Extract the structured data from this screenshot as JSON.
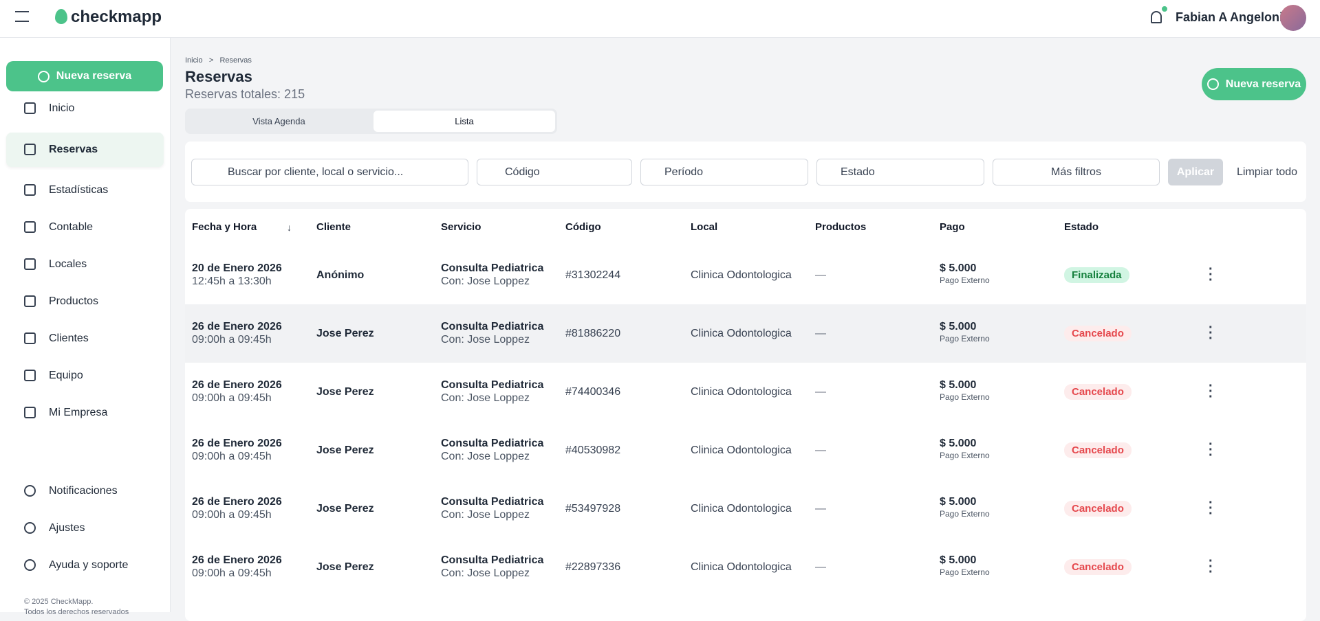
{
  "app": {
    "brand": "checkmapp",
    "user": "Fabian A Angeloni"
  },
  "sidebar": {
    "new_button": "Nueva reserva",
    "nav": [
      "Inicio",
      "Reservas",
      "Estadísticas",
      "Contable",
      "Locales",
      "Productos",
      "Clientes",
      "Equipo",
      "Mi Empresa"
    ],
    "bottom_nav": [
      "Notificaciones",
      "Ajustes",
      "Ayuda y soporte"
    ],
    "footer": [
      "© 2025 CheckMapp.",
      "Todos los derechos reservados"
    ]
  },
  "header": {
    "breadcrumb": [
      "Inicio",
      "Reservas"
    ],
    "breadcrumb_sep": ">",
    "title": "Reservas",
    "total": "Reservas totales: 215",
    "new_button": "Nueva reserva"
  },
  "tabs": [
    "Vista Agenda",
    "Lista"
  ],
  "filters": {
    "search": "Buscar por cliente, local o servicio...",
    "code": "Código",
    "period": "Período",
    "status": "Estado",
    "more": "Más filtros",
    "apply": "Aplicar",
    "clear": "Limpiar todo"
  },
  "table": {
    "columns": [
      "Fecha y Hora",
      "Cliente",
      "Servicio",
      "Código",
      "Local",
      "Productos",
      "Pago",
      "Estado"
    ],
    "rows": [
      [
        "20 de Enero 2026",
        "12:45h a 13:30h",
        "Anónimo",
        "Consulta Pediatrica",
        "Con: Jose Loppez",
        "#31302244",
        "Clinica Odontologica",
        "—",
        "$ 5.000",
        "Pago Externo",
        "Finalizada"
      ],
      [
        "26 de Enero 2026",
        "09:00h a 09:45h",
        "Jose Perez",
        "Consulta Pediatrica",
        "Con: Jose Loppez",
        "#81886220",
        "Clinica Odontologica",
        "—",
        "$ 5.000",
        "Pago Externo",
        "Cancelado"
      ],
      [
        "26 de Enero 2026",
        "09:00h a 09:45h",
        "Jose Perez",
        "Consulta Pediatrica",
        "Con: Jose Loppez",
        "#74400346",
        "Clinica Odontologica",
        "—",
        "$ 5.000",
        "Pago Externo",
        "Cancelado"
      ],
      [
        "26 de Enero 2026",
        "09:00h a 09:45h",
        "Jose Perez",
        "Consulta Pediatrica",
        "Con: Jose Loppez",
        "#40530982",
        "Clinica Odontologica",
        "—",
        "$ 5.000",
        "Pago Externo",
        "Cancelado"
      ],
      [
        "26 de Enero 2026",
        "09:00h a 09:45h",
        "Jose Perez",
        "Consulta Pediatrica",
        "Con: Jose Loppez",
        "#53497928",
        "Clinica Odontologica",
        "—",
        "$ 5.000",
        "Pago Externo",
        "Cancelado"
      ],
      [
        "26 de Enero 2026",
        "09:00h a 09:45h",
        "Jose Perez",
        "Consulta Pediatrica",
        "Con: Jose Loppez",
        "#22897336",
        "Clinica Odontologica",
        "—",
        "$ 5.000",
        "Pago Externo",
        "Cancelado"
      ]
    ]
  }
}
